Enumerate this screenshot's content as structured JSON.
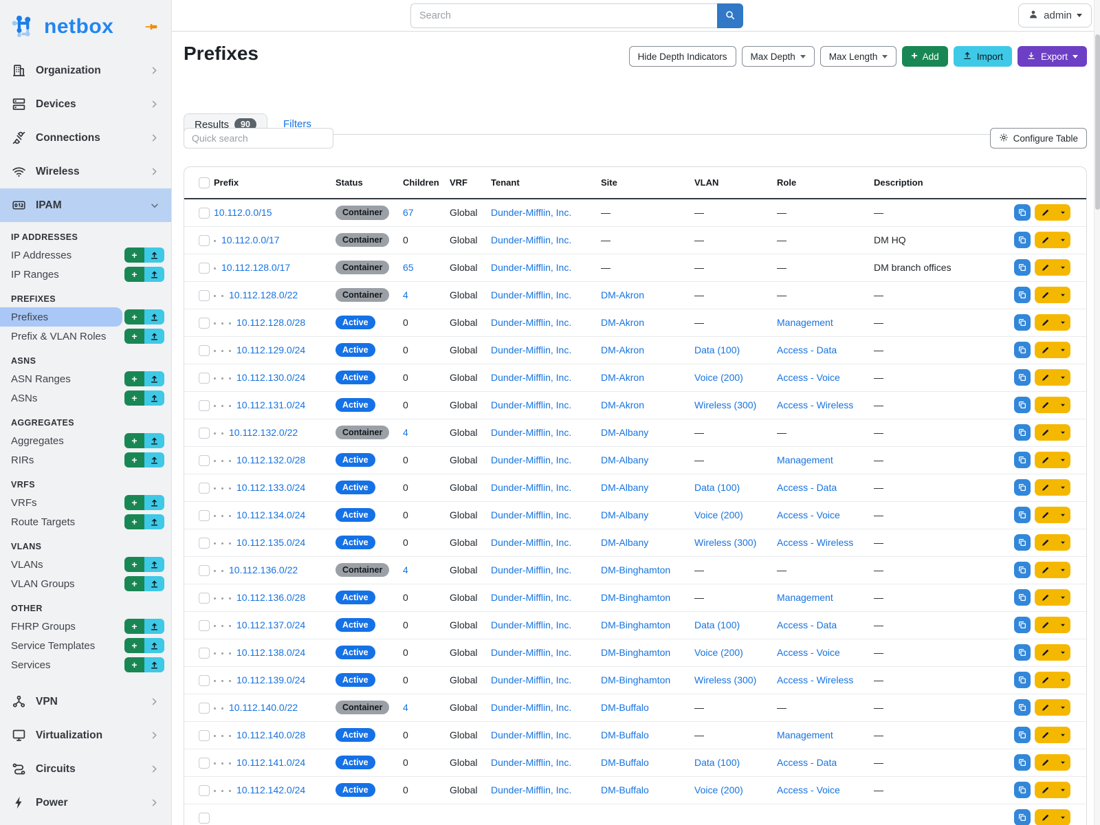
{
  "brand": {
    "logo_text": "netbox"
  },
  "topbar": {
    "search_placeholder": "Search",
    "user": "admin"
  },
  "sidebar": {
    "top_items": [
      {
        "label": "Organization",
        "icon": "building-icon"
      },
      {
        "label": "Devices",
        "icon": "server-icon"
      },
      {
        "label": "Connections",
        "icon": "plug-icon"
      },
      {
        "label": "Wireless",
        "icon": "wifi-icon"
      }
    ],
    "ipam": {
      "label": "IPAM",
      "icon": "counter-icon"
    },
    "ipam_sections": [
      {
        "header": "IP ADDRESSES",
        "items": [
          {
            "label": "IP Addresses"
          },
          {
            "label": "IP Ranges"
          }
        ]
      },
      {
        "header": "PREFIXES",
        "items": [
          {
            "label": "Prefixes",
            "selected": true
          },
          {
            "label": "Prefix & VLAN Roles"
          }
        ]
      },
      {
        "header": "ASNS",
        "items": [
          {
            "label": "ASN Ranges"
          },
          {
            "label": "ASNs"
          }
        ]
      },
      {
        "header": "AGGREGATES",
        "items": [
          {
            "label": "Aggregates"
          },
          {
            "label": "RIRs"
          }
        ]
      },
      {
        "header": "VRFS",
        "items": [
          {
            "label": "VRFs"
          },
          {
            "label": "Route Targets"
          }
        ]
      },
      {
        "header": "VLANS",
        "items": [
          {
            "label": "VLANs"
          },
          {
            "label": "VLAN Groups"
          }
        ]
      },
      {
        "header": "OTHER",
        "items": [
          {
            "label": "FHRP Groups"
          },
          {
            "label": "Service Templates"
          },
          {
            "label": "Services"
          }
        ]
      }
    ],
    "bottom_items": [
      {
        "label": "VPN",
        "icon": "share-nodes-icon"
      },
      {
        "label": "Virtualization",
        "icon": "monitor-icon"
      },
      {
        "label": "Circuits",
        "icon": "route-icon"
      },
      {
        "label": "Power",
        "icon": "bolt-icon"
      }
    ]
  },
  "page": {
    "title": "Prefixes",
    "actions": {
      "hide_depth": "Hide Depth Indicators",
      "max_depth": "Max Depth",
      "max_length": "Max Length",
      "add": "Add",
      "import": "Import",
      "export": "Export"
    }
  },
  "tabs": {
    "results": "Results",
    "results_count": "90",
    "filters": "Filters"
  },
  "toolbar": {
    "quick_search_placeholder": "Quick search",
    "configure_table": "Configure Table"
  },
  "table": {
    "columns": [
      "Prefix",
      "Status",
      "Children",
      "VRF",
      "Tenant",
      "Site",
      "VLAN",
      "Role",
      "Description"
    ],
    "rows": [
      {
        "depth": 0,
        "prefix": "10.112.0.0/15",
        "status": "Container",
        "variant": "container",
        "children": "67",
        "children_link": true,
        "vrf": "Global",
        "tenant": "Dunder-Mifflin, Inc.",
        "site": "—",
        "vlan": "—",
        "role": "—",
        "description": "—"
      },
      {
        "depth": 1,
        "prefix": "10.112.0.0/17",
        "status": "Container",
        "variant": "container",
        "children": "0",
        "children_link": false,
        "vrf": "Global",
        "tenant": "Dunder-Mifflin, Inc.",
        "site": "—",
        "vlan": "—",
        "role": "—",
        "description": "DM HQ"
      },
      {
        "depth": 1,
        "prefix": "10.112.128.0/17",
        "status": "Container",
        "variant": "container",
        "children": "65",
        "children_link": true,
        "vrf": "Global",
        "tenant": "Dunder-Mifflin, Inc.",
        "site": "—",
        "vlan": "—",
        "role": "—",
        "description": "DM branch offices"
      },
      {
        "depth": 2,
        "prefix": "10.112.128.0/22",
        "status": "Container",
        "variant": "container",
        "children": "4",
        "children_link": true,
        "vrf": "Global",
        "tenant": "Dunder-Mifflin, Inc.",
        "site": "DM-Akron",
        "vlan": "—",
        "role": "—",
        "description": "—"
      },
      {
        "depth": 3,
        "prefix": "10.112.128.0/28",
        "status": "Active",
        "variant": "active",
        "children": "0",
        "children_link": false,
        "vrf": "Global",
        "tenant": "Dunder-Mifflin, Inc.",
        "site": "DM-Akron",
        "vlan": "—",
        "role": "Management",
        "description": "—"
      },
      {
        "depth": 3,
        "prefix": "10.112.129.0/24",
        "status": "Active",
        "variant": "active",
        "children": "0",
        "children_link": false,
        "vrf": "Global",
        "tenant": "Dunder-Mifflin, Inc.",
        "site": "DM-Akron",
        "vlan": "Data (100)",
        "role": "Access - Data",
        "description": "—"
      },
      {
        "depth": 3,
        "prefix": "10.112.130.0/24",
        "status": "Active",
        "variant": "active",
        "children": "0",
        "children_link": false,
        "vrf": "Global",
        "tenant": "Dunder-Mifflin, Inc.",
        "site": "DM-Akron",
        "vlan": "Voice (200)",
        "role": "Access - Voice",
        "description": "—"
      },
      {
        "depth": 3,
        "prefix": "10.112.131.0/24",
        "status": "Active",
        "variant": "active",
        "children": "0",
        "children_link": false,
        "vrf": "Global",
        "tenant": "Dunder-Mifflin, Inc.",
        "site": "DM-Akron",
        "vlan": "Wireless (300)",
        "role": "Access - Wireless",
        "description": "—"
      },
      {
        "depth": 2,
        "prefix": "10.112.132.0/22",
        "status": "Container",
        "variant": "container",
        "children": "4",
        "children_link": true,
        "vrf": "Global",
        "tenant": "Dunder-Mifflin, Inc.",
        "site": "DM-Albany",
        "vlan": "—",
        "role": "—",
        "description": "—"
      },
      {
        "depth": 3,
        "prefix": "10.112.132.0/28",
        "status": "Active",
        "variant": "active",
        "children": "0",
        "children_link": false,
        "vrf": "Global",
        "tenant": "Dunder-Mifflin, Inc.",
        "site": "DM-Albany",
        "vlan": "—",
        "role": "Management",
        "description": "—"
      },
      {
        "depth": 3,
        "prefix": "10.112.133.0/24",
        "status": "Active",
        "variant": "active",
        "children": "0",
        "children_link": false,
        "vrf": "Global",
        "tenant": "Dunder-Mifflin, Inc.",
        "site": "DM-Albany",
        "vlan": "Data (100)",
        "role": "Access - Data",
        "description": "—"
      },
      {
        "depth": 3,
        "prefix": "10.112.134.0/24",
        "status": "Active",
        "variant": "active",
        "children": "0",
        "children_link": false,
        "vrf": "Global",
        "tenant": "Dunder-Mifflin, Inc.",
        "site": "DM-Albany",
        "vlan": "Voice (200)",
        "role": "Access - Voice",
        "description": "—"
      },
      {
        "depth": 3,
        "prefix": "10.112.135.0/24",
        "status": "Active",
        "variant": "active",
        "children": "0",
        "children_link": false,
        "vrf": "Global",
        "tenant": "Dunder-Mifflin, Inc.",
        "site": "DM-Albany",
        "vlan": "Wireless (300)",
        "role": "Access - Wireless",
        "description": "—"
      },
      {
        "depth": 2,
        "prefix": "10.112.136.0/22",
        "status": "Container",
        "variant": "container",
        "children": "4",
        "children_link": true,
        "vrf": "Global",
        "tenant": "Dunder-Mifflin, Inc.",
        "site": "DM-Binghamton",
        "vlan": "—",
        "role": "—",
        "description": "—"
      },
      {
        "depth": 3,
        "prefix": "10.112.136.0/28",
        "status": "Active",
        "variant": "active",
        "children": "0",
        "children_link": false,
        "vrf": "Global",
        "tenant": "Dunder-Mifflin, Inc.",
        "site": "DM-Binghamton",
        "vlan": "—",
        "role": "Management",
        "description": "—"
      },
      {
        "depth": 3,
        "prefix": "10.112.137.0/24",
        "status": "Active",
        "variant": "active",
        "children": "0",
        "children_link": false,
        "vrf": "Global",
        "tenant": "Dunder-Mifflin, Inc.",
        "site": "DM-Binghamton",
        "vlan": "Data (100)",
        "role": "Access - Data",
        "description": "—"
      },
      {
        "depth": 3,
        "prefix": "10.112.138.0/24",
        "status": "Active",
        "variant": "active",
        "children": "0",
        "children_link": false,
        "vrf": "Global",
        "tenant": "Dunder-Mifflin, Inc.",
        "site": "DM-Binghamton",
        "vlan": "Voice (200)",
        "role": "Access - Voice",
        "description": "—"
      },
      {
        "depth": 3,
        "prefix": "10.112.139.0/24",
        "status": "Active",
        "variant": "active",
        "children": "0",
        "children_link": false,
        "vrf": "Global",
        "tenant": "Dunder-Mifflin, Inc.",
        "site": "DM-Binghamton",
        "vlan": "Wireless (300)",
        "role": "Access - Wireless",
        "description": "—"
      },
      {
        "depth": 2,
        "prefix": "10.112.140.0/22",
        "status": "Container",
        "variant": "container",
        "children": "4",
        "children_link": true,
        "vrf": "Global",
        "tenant": "Dunder-Mifflin, Inc.",
        "site": "DM-Buffalo",
        "vlan": "—",
        "role": "—",
        "description": "—"
      },
      {
        "depth": 3,
        "prefix": "10.112.140.0/28",
        "status": "Active",
        "variant": "active",
        "children": "0",
        "children_link": false,
        "vrf": "Global",
        "tenant": "Dunder-Mifflin, Inc.",
        "site": "DM-Buffalo",
        "vlan": "—",
        "role": "Management",
        "description": "—"
      },
      {
        "depth": 3,
        "prefix": "10.112.141.0/24",
        "status": "Active",
        "variant": "active",
        "children": "0",
        "children_link": false,
        "vrf": "Global",
        "tenant": "Dunder-Mifflin, Inc.",
        "site": "DM-Buffalo",
        "vlan": "Data (100)",
        "role": "Access - Data",
        "description": "—"
      },
      {
        "depth": 3,
        "prefix": "10.112.142.0/24",
        "status": "Active",
        "variant": "active",
        "children": "0",
        "children_link": false,
        "vrf": "Global",
        "tenant": "Dunder-Mifflin, Inc.",
        "site": "DM-Buffalo",
        "vlan": "Voice (200)",
        "role": "Access - Voice",
        "description": "—"
      },
      {
        "partial": true
      }
    ]
  },
  "colors": {
    "brand": "#2286f0",
    "link": "#1673e0",
    "highlight": "#b9d2f3",
    "selected": "#a9c8f7",
    "add": "#198754",
    "import": "#3ec9e6",
    "export": "#6d3fc5",
    "edit": "#f5b800",
    "copy": "#3287d9",
    "badge_gray": "#9aa0a6",
    "badge_blue": "#1571e6",
    "searchbtn": "#3178c6",
    "pin": "#f08c00"
  }
}
